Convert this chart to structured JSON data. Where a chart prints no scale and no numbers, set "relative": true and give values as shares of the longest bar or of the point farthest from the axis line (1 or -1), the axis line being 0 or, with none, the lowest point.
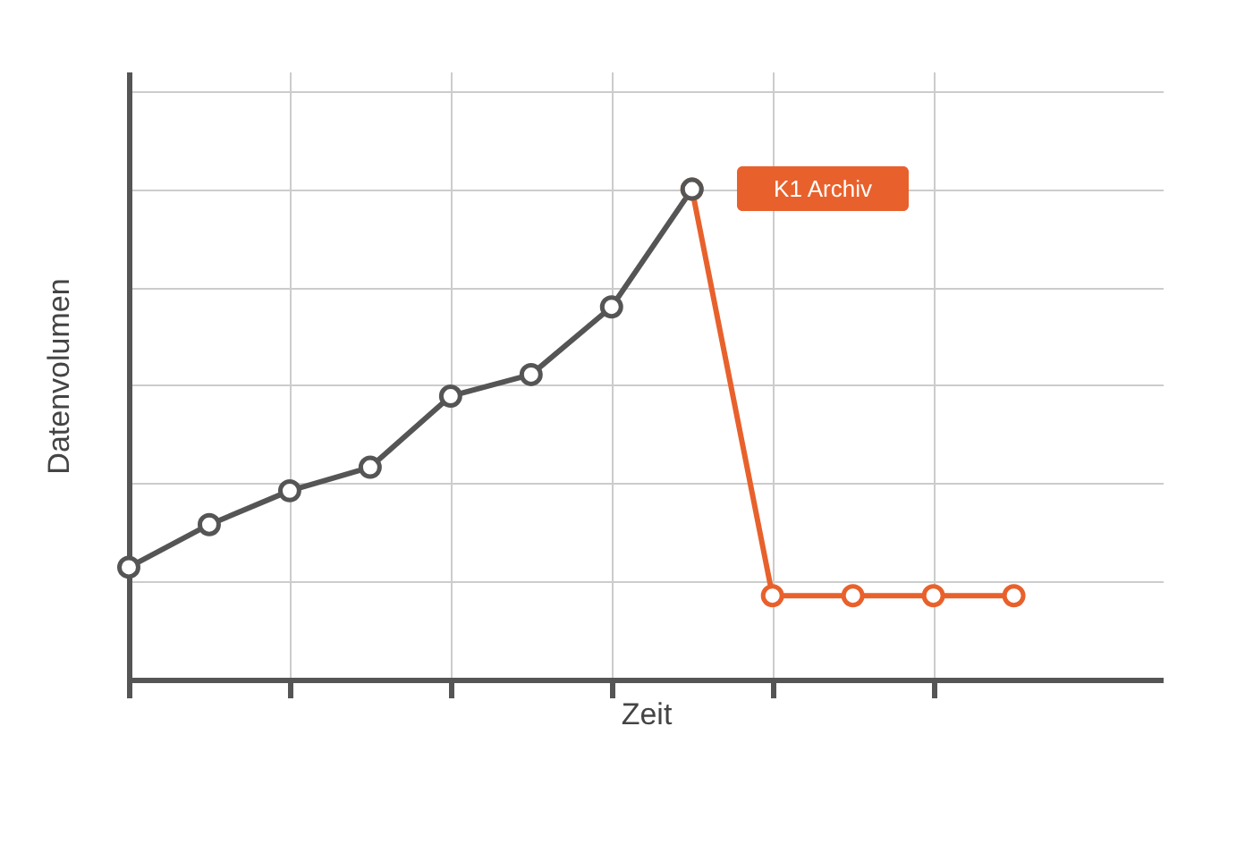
{
  "chart_data": {
    "type": "line",
    "xlabel": "Zeit",
    "ylabel": "Datenvolumen",
    "relative": true,
    "grid": true,
    "marker": "circle",
    "line_style": "solid",
    "categories": [
      null,
      null,
      null,
      null,
      null,
      null,
      null,
      null,
      null,
      null,
      null,
      null
    ],
    "series": [
      {
        "color": "#555555",
        "values": [
          0.229,
          0.316,
          0.385,
          0.433,
          0.578,
          0.622,
          0.76,
          1,
          null,
          null,
          null,
          null
        ]
      },
      {
        "color": "#e8612c",
        "values": [
          null,
          null,
          null,
          null,
          null,
          null,
          null,
          1,
          0.171,
          0.171,
          0.171,
          0.171
        ]
      }
    ],
    "annotations": [
      "K1 Archiv"
    ]
  }
}
